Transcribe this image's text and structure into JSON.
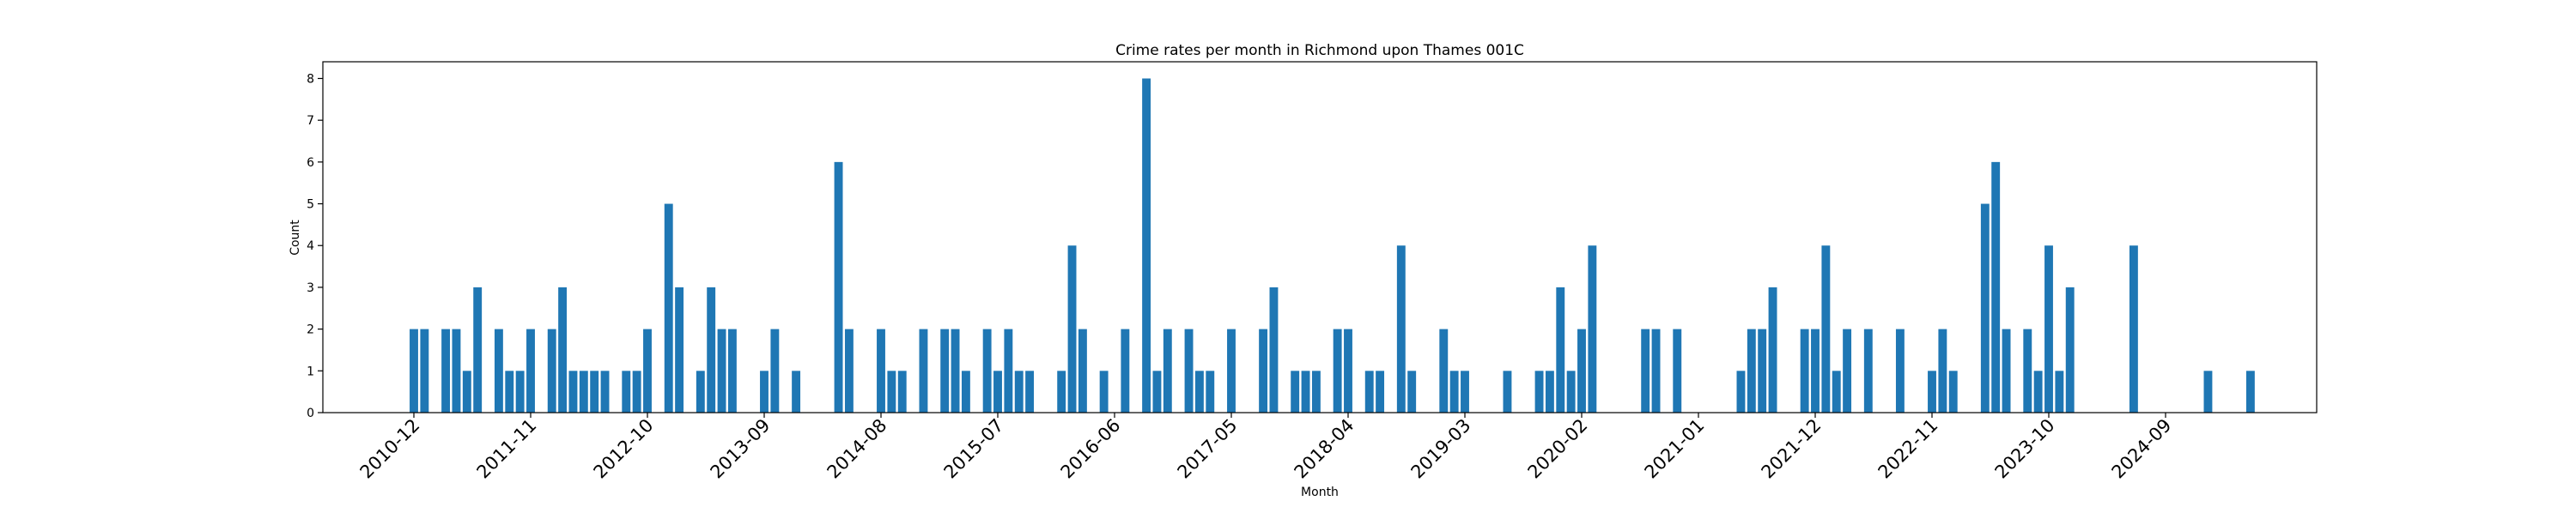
{
  "chart_data": {
    "type": "bar",
    "title": "Crime rates per month in Richmond upon Thames 001C",
    "xlabel": "Month",
    "ylabel": "Count",
    "ylim": [
      0,
      8.4
    ],
    "yticks": [
      0,
      1,
      2,
      3,
      4,
      5,
      6,
      7,
      8
    ],
    "xticks": [
      "2010-12",
      "2011-11",
      "2012-10",
      "2013-09",
      "2014-08",
      "2015-07",
      "2016-06",
      "2017-05",
      "2018-04",
      "2019-03",
      "2020-02",
      "2021-01",
      "2021-12",
      "2022-11",
      "2023-10",
      "2024-09"
    ],
    "grid": false,
    "bar_color": "#1f77b4",
    "points": [
      {
        "x": "2010-12",
        "y": 2
      },
      {
        "x": "2011-01",
        "y": 2
      },
      {
        "x": "2011-03",
        "y": 2
      },
      {
        "x": "2011-04",
        "y": 2
      },
      {
        "x": "2011-05",
        "y": 1
      },
      {
        "x": "2011-06",
        "y": 3
      },
      {
        "x": "2011-08",
        "y": 2
      },
      {
        "x": "2011-09",
        "y": 1
      },
      {
        "x": "2011-10",
        "y": 1
      },
      {
        "x": "2011-11",
        "y": 2
      },
      {
        "x": "2012-01",
        "y": 2
      },
      {
        "x": "2012-02",
        "y": 3
      },
      {
        "x": "2012-03",
        "y": 1
      },
      {
        "x": "2012-04",
        "y": 1
      },
      {
        "x": "2012-05",
        "y": 1
      },
      {
        "x": "2012-06",
        "y": 1
      },
      {
        "x": "2012-08",
        "y": 1
      },
      {
        "x": "2012-09",
        "y": 1
      },
      {
        "x": "2012-10",
        "y": 2
      },
      {
        "x": "2012-12",
        "y": 5
      },
      {
        "x": "2013-01",
        "y": 3
      },
      {
        "x": "2013-03",
        "y": 1
      },
      {
        "x": "2013-04",
        "y": 3
      },
      {
        "x": "2013-05",
        "y": 2
      },
      {
        "x": "2013-06",
        "y": 2
      },
      {
        "x": "2013-09",
        "y": 1
      },
      {
        "x": "2013-10",
        "y": 2
      },
      {
        "x": "2013-12",
        "y": 1
      },
      {
        "x": "2014-04",
        "y": 6
      },
      {
        "x": "2014-05",
        "y": 2
      },
      {
        "x": "2014-08",
        "y": 2
      },
      {
        "x": "2014-09",
        "y": 1
      },
      {
        "x": "2014-10",
        "y": 1
      },
      {
        "x": "2014-12",
        "y": 2
      },
      {
        "x": "2015-02",
        "y": 2
      },
      {
        "x": "2015-03",
        "y": 2
      },
      {
        "x": "2015-04",
        "y": 1
      },
      {
        "x": "2015-06",
        "y": 2
      },
      {
        "x": "2015-07",
        "y": 1
      },
      {
        "x": "2015-08",
        "y": 2
      },
      {
        "x": "2015-09",
        "y": 1
      },
      {
        "x": "2015-10",
        "y": 1
      },
      {
        "x": "2016-01",
        "y": 1
      },
      {
        "x": "2016-02",
        "y": 4
      },
      {
        "x": "2016-03",
        "y": 2
      },
      {
        "x": "2016-05",
        "y": 1
      },
      {
        "x": "2016-07",
        "y": 2
      },
      {
        "x": "2016-09",
        "y": 8
      },
      {
        "x": "2016-10",
        "y": 1
      },
      {
        "x": "2016-11",
        "y": 2
      },
      {
        "x": "2017-01",
        "y": 2
      },
      {
        "x": "2017-02",
        "y": 1
      },
      {
        "x": "2017-03",
        "y": 1
      },
      {
        "x": "2017-05",
        "y": 2
      },
      {
        "x": "2017-08",
        "y": 2
      },
      {
        "x": "2017-09",
        "y": 3
      },
      {
        "x": "2017-11",
        "y": 1
      },
      {
        "x": "2017-12",
        "y": 1
      },
      {
        "x": "2018-01",
        "y": 1
      },
      {
        "x": "2018-03",
        "y": 2
      },
      {
        "x": "2018-04",
        "y": 2
      },
      {
        "x": "2018-06",
        "y": 1
      },
      {
        "x": "2018-07",
        "y": 1
      },
      {
        "x": "2018-09",
        "y": 4
      },
      {
        "x": "2018-10",
        "y": 1
      },
      {
        "x": "2019-01",
        "y": 2
      },
      {
        "x": "2019-02",
        "y": 1
      },
      {
        "x": "2019-03",
        "y": 1
      },
      {
        "x": "2019-07",
        "y": 1
      },
      {
        "x": "2019-10",
        "y": 1
      },
      {
        "x": "2019-11",
        "y": 1
      },
      {
        "x": "2019-12",
        "y": 3
      },
      {
        "x": "2020-01",
        "y": 1
      },
      {
        "x": "2020-02",
        "y": 2
      },
      {
        "x": "2020-03",
        "y": 4
      },
      {
        "x": "2020-08",
        "y": 2
      },
      {
        "x": "2020-09",
        "y": 2
      },
      {
        "x": "2020-11",
        "y": 2
      },
      {
        "x": "2021-05",
        "y": 1
      },
      {
        "x": "2021-06",
        "y": 2
      },
      {
        "x": "2021-07",
        "y": 2
      },
      {
        "x": "2021-08",
        "y": 3
      },
      {
        "x": "2021-11",
        "y": 2
      },
      {
        "x": "2021-12",
        "y": 2
      },
      {
        "x": "2022-01",
        "y": 4
      },
      {
        "x": "2022-02",
        "y": 1
      },
      {
        "x": "2022-03",
        "y": 2
      },
      {
        "x": "2022-05",
        "y": 2
      },
      {
        "x": "2022-08",
        "y": 2
      },
      {
        "x": "2022-11",
        "y": 1
      },
      {
        "x": "2022-12",
        "y": 2
      },
      {
        "x": "2023-01",
        "y": 1
      },
      {
        "x": "2023-04",
        "y": 5
      },
      {
        "x": "2023-05",
        "y": 6
      },
      {
        "x": "2023-06",
        "y": 2
      },
      {
        "x": "2023-08",
        "y": 2
      },
      {
        "x": "2023-09",
        "y": 1
      },
      {
        "x": "2023-10",
        "y": 4
      },
      {
        "x": "2023-11",
        "y": 1
      },
      {
        "x": "2023-12",
        "y": 3
      },
      {
        "x": "2024-06",
        "y": 4
      },
      {
        "x": "2025-01",
        "y": 1
      },
      {
        "x": "2025-05",
        "y": 1
      }
    ]
  }
}
